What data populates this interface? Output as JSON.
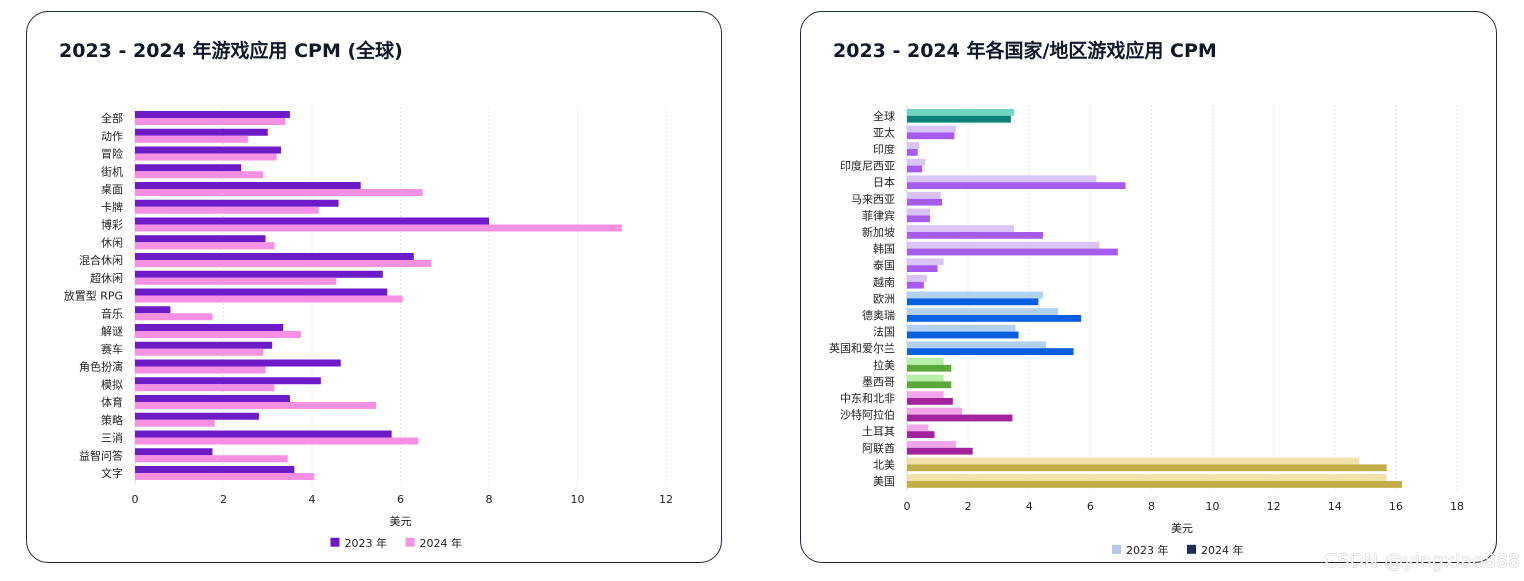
{
  "watermark": "CSDN @yingxiao888",
  "chart_data": [
    {
      "type": "bar",
      "orientation": "horizontal",
      "title": "2023 - 2024 年游戏应用 CPM (全球)",
      "xlabel": "美元",
      "xlim": [
        0,
        12
      ],
      "xticks": [
        0,
        2,
        4,
        6,
        8,
        10,
        12
      ],
      "grid": true,
      "legend_position": "bottom",
      "categories": [
        "全部",
        "动作",
        "冒险",
        "街机",
        "桌面",
        "卡牌",
        "博彩",
        "休闲",
        "混合休闲",
        "超休闲",
        "放置型 RPG",
        "音乐",
        "解谜",
        "赛车",
        "角色扮演",
        "模拟",
        "体育",
        "策略",
        "三消",
        "益智问答",
        "文字"
      ],
      "series": [
        {
          "name": "2023 年",
          "color": "#6d1bc7",
          "values": [
            3.5,
            3.0,
            3.3,
            2.4,
            5.1,
            4.6,
            8.0,
            2.95,
            6.3,
            5.6,
            5.7,
            0.8,
            3.35,
            3.1,
            4.65,
            4.2,
            3.5,
            2.8,
            5.8,
            1.75,
            3.6
          ]
        },
        {
          "name": "2024 年",
          "color": "#f590e3",
          "values": [
            3.4,
            2.55,
            3.2,
            2.9,
            6.5,
            4.15,
            11.0,
            3.15,
            6.7,
            4.55,
            6.05,
            1.75,
            3.75,
            2.9,
            2.95,
            3.15,
            5.45,
            1.8,
            6.4,
            3.45,
            4.05
          ]
        }
      ]
    },
    {
      "type": "bar",
      "orientation": "horizontal",
      "title": "2023 - 2024 年各国家/地区游戏应用 CPM",
      "xlabel": "美元",
      "xlim": [
        0,
        18
      ],
      "xticks": [
        0,
        2,
        4,
        6,
        8,
        10,
        12,
        14,
        16,
        18
      ],
      "grid": true,
      "legend_position": "bottom",
      "legend": [
        {
          "name": "2023 年",
          "color": "#b9c6e6"
        },
        {
          "name": "2024 年",
          "color": "#1f2d55"
        }
      ],
      "categories": [
        "全球",
        "亚太",
        "印度",
        "印度尼西亚",
        "日本",
        "马来西亚",
        "菲律宾",
        "新加坡",
        "韩国",
        "泰国",
        "越南",
        "欧洲",
        "德奥瑞",
        "法国",
        "英国和爱尔兰",
        "拉美",
        "墨西哥",
        "中东和北非",
        "沙特阿拉伯",
        "土耳其",
        "阿联酋",
        "北美",
        "美国"
      ],
      "series": [
        {
          "name": "2023 年",
          "values": [
            3.5,
            1.6,
            0.4,
            0.6,
            6.2,
            1.1,
            0.75,
            3.5,
            6.3,
            1.2,
            0.65,
            4.45,
            4.95,
            3.55,
            4.55,
            1.2,
            1.2,
            1.2,
            1.8,
            0.7,
            1.6,
            14.8,
            15.7
          ]
        },
        {
          "name": "2024 年",
          "values": [
            3.4,
            1.55,
            0.35,
            0.5,
            7.15,
            1.15,
            0.75,
            4.45,
            6.9,
            1.0,
            0.55,
            4.3,
            5.7,
            3.65,
            5.45,
            1.45,
            1.45,
            1.5,
            3.45,
            0.9,
            2.15,
            15.7,
            16.2
          ]
        }
      ],
      "group_colors": [
        {
          "from": 0,
          "to": 0,
          "c2023": "#6fd6c2",
          "c2024": "#0b8278"
        },
        {
          "from": 1,
          "to": 10,
          "c2023": "#d9c4f5",
          "c2024": "#a65cf0"
        },
        {
          "from": 11,
          "to": 14,
          "c2023": "#b3d0f5",
          "c2024": "#0a5ee0"
        },
        {
          "from": 15,
          "to": 16,
          "c2023": "#b9f0a8",
          "c2024": "#5aa83a"
        },
        {
          "from": 17,
          "to": 20,
          "c2023": "#f2a6ea",
          "c2024": "#a3239c"
        },
        {
          "from": 21,
          "to": 22,
          "c2023": "#f2e3a8",
          "c2024": "#c2ae46"
        }
      ]
    }
  ]
}
